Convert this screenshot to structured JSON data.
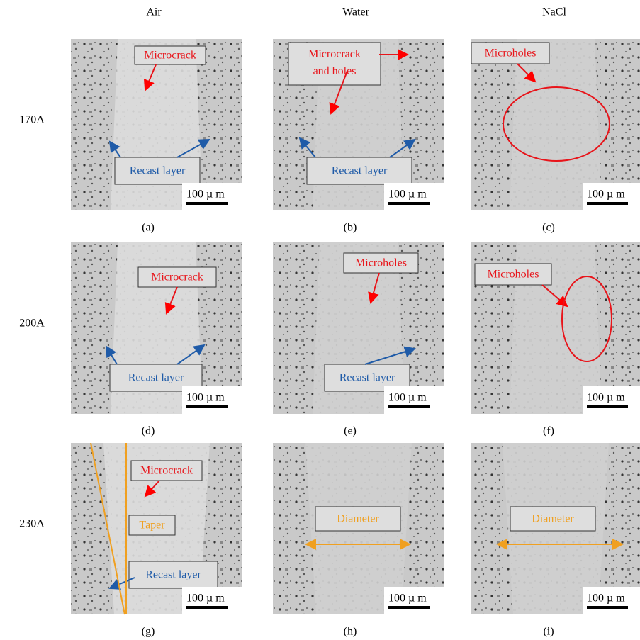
{
  "columns": [
    "Air",
    "Water",
    "NaCl"
  ],
  "rows": [
    "170A",
    "200A",
    "230A"
  ],
  "panels": [
    {
      "caption": "(a)",
      "scale": "100 µ m",
      "annotations": [
        {
          "text": "Microcrack",
          "color": "red"
        },
        {
          "text": "Recast layer",
          "color": "blue"
        }
      ]
    },
    {
      "caption": "(b)",
      "scale": "100 µ m",
      "annotations": [
        {
          "text": "Microcrack and holes",
          "color": "red"
        },
        {
          "text": "Recast layer",
          "color": "blue"
        }
      ]
    },
    {
      "caption": "(c)",
      "scale": "100 µ m",
      "annotations": [
        {
          "text": "Microholes",
          "color": "red"
        }
      ]
    },
    {
      "caption": "(d)",
      "scale": "100 µ m",
      "annotations": [
        {
          "text": "Microcrack",
          "color": "red"
        },
        {
          "text": "Recast layer",
          "color": "blue"
        }
      ]
    },
    {
      "caption": "(e)",
      "scale": "100 µ m",
      "annotations": [
        {
          "text": "Microholes",
          "color": "red"
        },
        {
          "text": "Recast layer",
          "color": "blue"
        }
      ]
    },
    {
      "caption": "(f)",
      "scale": "100 µ m",
      "annotations": [
        {
          "text": "Microholes",
          "color": "red"
        }
      ]
    },
    {
      "caption": "(g)",
      "scale": "100 µ m",
      "annotations": [
        {
          "text": "Microcrack",
          "color": "red"
        },
        {
          "text": "Taper",
          "color": "orange"
        },
        {
          "text": "Recast layer",
          "color": "blue"
        }
      ]
    },
    {
      "caption": "(h)",
      "scale": "100 µ m",
      "annotations": [
        {
          "text": "Diameter",
          "color": "orange"
        }
      ]
    },
    {
      "caption": "(i)",
      "scale": "100 µ m",
      "annotations": [
        {
          "text": "Diameter",
          "color": "orange"
        }
      ]
    }
  ]
}
